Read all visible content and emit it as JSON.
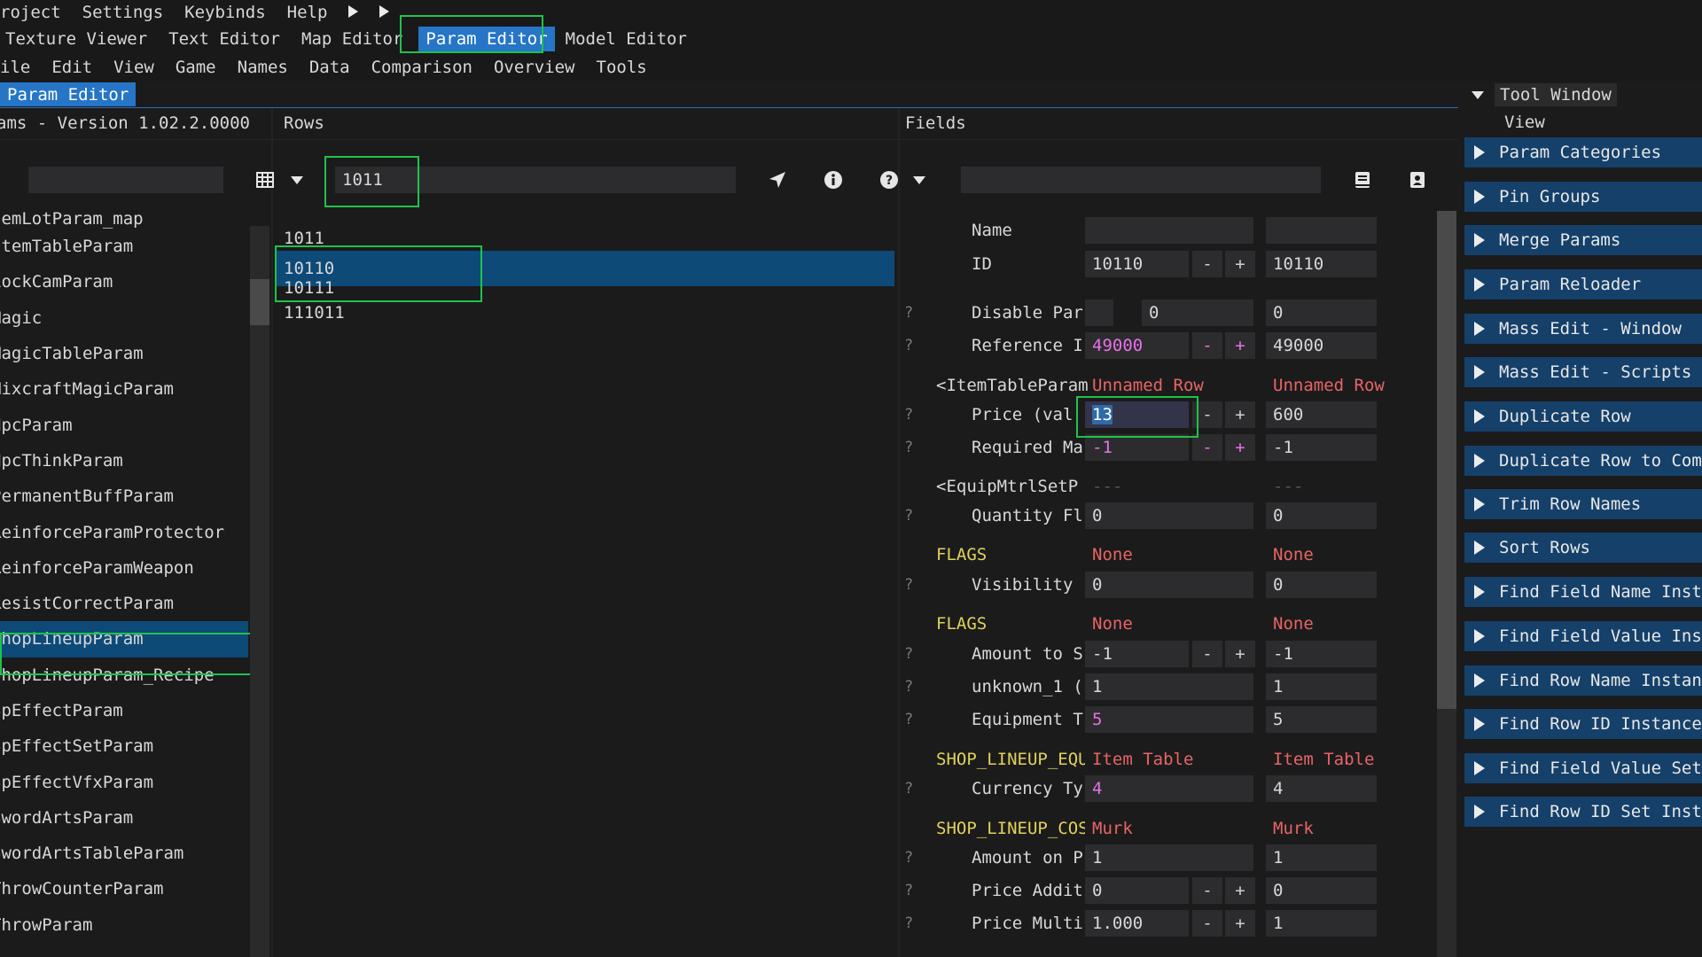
{
  "menu1": [
    "roject",
    "Settings",
    "Keybinds",
    "Help"
  ],
  "menu2": [
    "Texture Viewer",
    "Text Editor",
    "Map Editor",
    "Param Editor",
    "Model Editor"
  ],
  "menu3": [
    "ile",
    "Edit",
    "View",
    "Game",
    "Names",
    "Data",
    "Comparison",
    "Overview",
    "Tools"
  ],
  "tab": "Param Editor",
  "params_header": "ams  - Version 1.02.2.0000",
  "rows_header": "Rows",
  "fields_header": "Fields",
  "row_search_value": "1011",
  "params_list": [
    "ItemLotParam_map",
    "ItemTableParam",
    "LockCamParam",
    "Magic",
    "MagicTableParam",
    "MixcraftMagicParam",
    "NpcParam",
    "NpcThinkParam",
    "PermanentBuffParam",
    "ReinforceParamProtector",
    "ReinforceParamWeapon",
    "ResistCorrectParam",
    "ShopLineupParam",
    "ShopLineupParam_Recipe",
    "SpEffectParam",
    "SpEffectSetParam",
    "SpEffectVfxParam",
    "SwordArtsParam",
    "SwordArtsTableParam",
    "ThrowCounterParam",
    "ThrowParam"
  ],
  "params_list_display": [
    "temLotParam_map",
    "ItemTableParam",
    "LockCamParam",
    "Magic",
    "MagicTableParam",
    "MixcraftMagicParam",
    "NpcParam",
    "NpcThinkParam",
    "PermanentBuffParam",
    "ReinforceParamProtector",
    "ReinforceParamWeapon",
    "ResistCorrectParam",
    "ShopLineupParam",
    "ShopLineupParam_Recipe",
    "SpEffectParam",
    "SpEffectSetParam",
    "SpEffectVfxParam",
    "SwordArtsParam",
    "SwordArtsTableParam",
    "ThrowCounterParam",
    "ThrowParam"
  ],
  "rows": [
    "1011",
    "10110",
    "10111",
    "111011"
  ],
  "fields": {
    "name": {
      "label": "Name",
      "v1": "",
      "v2": ""
    },
    "id": {
      "label": "ID",
      "v1": "10110",
      "v2": "10110"
    },
    "disable": {
      "label": "Disable Par",
      "v1": "",
      "v1b": "0",
      "v2": "0"
    },
    "reference": {
      "label": "Reference I",
      "v1": "49000",
      "v2": "49000"
    },
    "itemtable_sec": {
      "label": "<ItemTableParam",
      "v1": "Unnamed Row",
      "v2": "Unnamed Row"
    },
    "price": {
      "label": "Price (val",
      "v1": "13",
      "v2": "600"
    },
    "required": {
      "label": "Required Ma",
      "v1": "-1",
      "v2": "-1"
    },
    "equipmtrl_sec": {
      "label": "<EquipMtrlSetP",
      "v1": "---",
      "v2": "---"
    },
    "quantity": {
      "label": "Quantity Fl",
      "v1": "0",
      "v2": "0"
    },
    "flags1": {
      "label": "FLAGS",
      "v1": "None",
      "v2": "None"
    },
    "visibility": {
      "label": "Visibility",
      "v1": "0",
      "v2": "0"
    },
    "flags2": {
      "label": "FLAGS",
      "v1": "None",
      "v2": "None"
    },
    "amount_to": {
      "label": "Amount to S",
      "v1": "-1",
      "v2": "-1"
    },
    "unknown1": {
      "label": "unknown_1 (",
      "v1": "1",
      "v2": "1"
    },
    "equipment": {
      "label": "Equipment T",
      "v1": "5",
      "v2": "5"
    },
    "shop_eq": {
      "label": "SHOP_LINEUP_EQUIP",
      "v1": "Item Table",
      "v2": "Item Table"
    },
    "currency": {
      "label": "Currency Ty",
      "v1": "4",
      "v2": "4"
    },
    "shop_cost": {
      "label": "SHOP_LINEUP_COST",
      "v1": "Murk",
      "v2": "Murk"
    },
    "amount_on": {
      "label": "Amount on P",
      "v1": "1",
      "v2": "1"
    },
    "price_add": {
      "label": "Price Addit",
      "v1": "0",
      "v2": "0"
    },
    "price_mul": {
      "label": "Price Multi",
      "v1": "1.000",
      "v2": "1"
    }
  },
  "tool_window": {
    "title": "Tool Window",
    "view": "View",
    "items": [
      "Param Categories",
      "Pin Groups",
      "Merge Params",
      "Param Reloader",
      "Mass Edit - Window",
      "Mass Edit - Scripts",
      "Duplicate Row",
      "Duplicate Row to Comm",
      "Trim Row Names",
      "Sort Rows",
      "Find Field Name Insta",
      "Find Field Value Inst",
      "Find Row Name Instanc",
      "Find Row ID Instances",
      "Find Field Value Set",
      "Find Row ID Set Insta"
    ]
  },
  "colors": {
    "accent": "#2675c7",
    "selection": "#0d4a78",
    "highlight": "#20c24a",
    "pink": "#e870e8",
    "red": "#e86464",
    "flag": "#e0d35a"
  }
}
